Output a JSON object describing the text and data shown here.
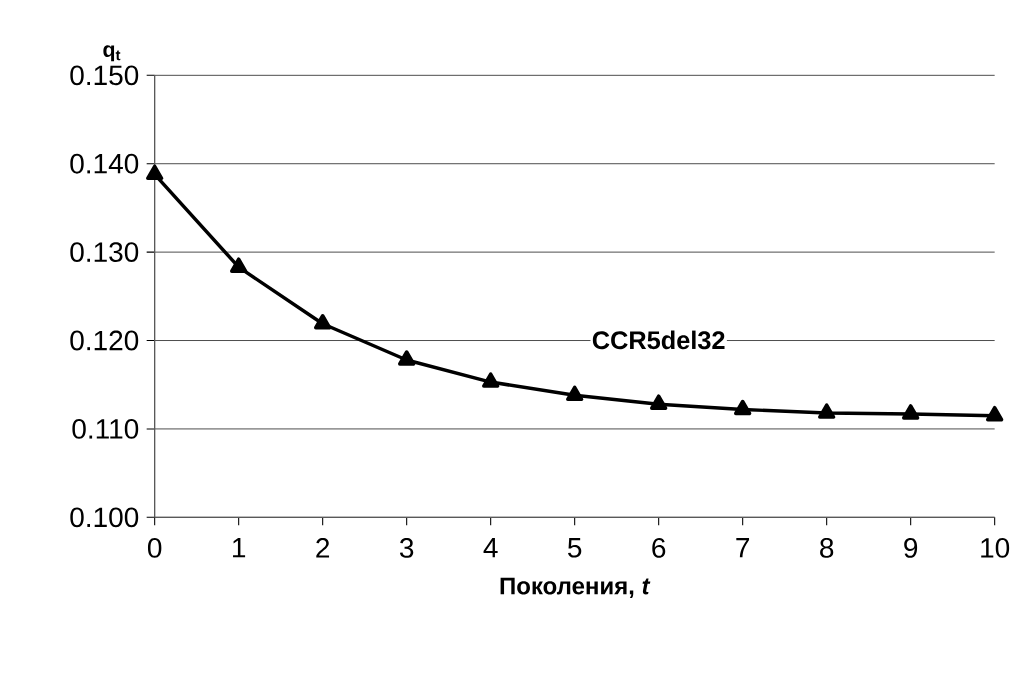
{
  "chart_data": {
    "type": "line",
    "xlabel": "Поколения, *t*",
    "ylabel": "q$_{t}$",
    "x": [
      0,
      1,
      2,
      3,
      4,
      5,
      6,
      7,
      8,
      9,
      10
    ],
    "series": [
      {
        "name": "CCR5del32",
        "color": "#000000",
        "values": [
          0.1388,
          0.1283,
          0.1219,
          0.1178,
          0.1153,
          0.1138,
          0.1128,
          0.1122,
          0.1118,
          0.1117,
          0.1115
        ]
      }
    ],
    "xlim": [
      0,
      10
    ],
    "xticks": [
      0,
      1,
      2,
      3,
      4,
      5,
      6,
      7,
      8,
      9,
      10
    ],
    "ylim": [
      0.1,
      0.15
    ],
    "yticks": [
      {
        "value": 0.1,
        "label": "0.100"
      },
      {
        "value": 0.11,
        "label": "0.110"
      },
      {
        "value": 0.12,
        "label": "0.120"
      },
      {
        "value": 0.13,
        "label": "0.130"
      },
      {
        "value": 0.14,
        "label": "0.140"
      },
      {
        "value": 0.15,
        "label": "0.150"
      }
    ],
    "grid": "y",
    "marker": "triangle",
    "line_style": "solid",
    "legend": false
  }
}
